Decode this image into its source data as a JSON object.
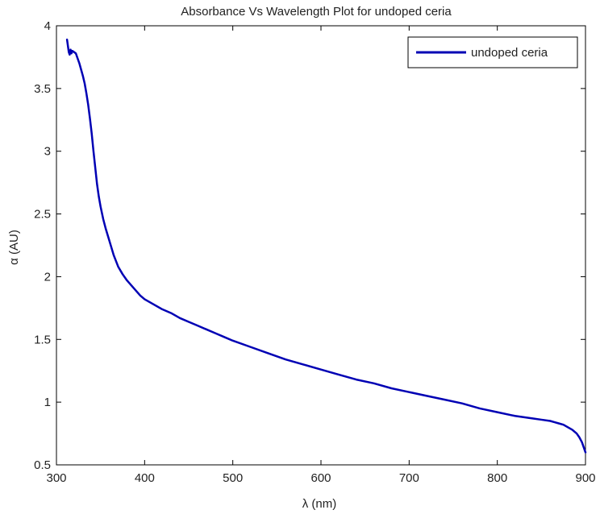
{
  "chart_data": {
    "type": "line",
    "title": "Absorbance Vs Wavelength Plot for undoped ceria",
    "xlabel": "λ (nm)",
    "ylabel": "α (AU)",
    "xlim": [
      300,
      900
    ],
    "ylim": [
      0.5,
      4
    ],
    "xticks": [
      300,
      400,
      500,
      600,
      700,
      800,
      900
    ],
    "yticks": [
      0.5,
      1,
      1.5,
      2,
      2.5,
      3,
      3.5,
      4
    ],
    "xtick_labels": [
      "300",
      "400",
      "500",
      "600",
      "700",
      "800",
      "900"
    ],
    "ytick_labels": [
      "0.5",
      "1",
      "1.5",
      "2",
      "2.5",
      "3",
      "3.5",
      "4"
    ],
    "grid": false,
    "legend_position": "top-right",
    "series": [
      {
        "name": "undoped ceria",
        "color": "#0000b4",
        "x": [
          312,
          313,
          314,
          315,
          316,
          317,
          318,
          320,
          322,
          324,
          326,
          328,
          330,
          332,
          334,
          336,
          338,
          340,
          342,
          344,
          346,
          348,
          350,
          353,
          356,
          359,
          362,
          365,
          370,
          375,
          380,
          385,
          390,
          395,
          400,
          405,
          410,
          420,
          430,
          440,
          450,
          460,
          470,
          480,
          490,
          500,
          520,
          540,
          560,
          580,
          600,
          620,
          640,
          660,
          680,
          700,
          720,
          740,
          760,
          780,
          800,
          820,
          840,
          850,
          860,
          865,
          870,
          875,
          880,
          885,
          890,
          893,
          896,
          898,
          900
        ],
        "y": [
          3.89,
          3.84,
          3.79,
          3.77,
          3.81,
          3.78,
          3.8,
          3.79,
          3.78,
          3.74,
          3.7,
          3.65,
          3.6,
          3.54,
          3.46,
          3.37,
          3.26,
          3.14,
          3.0,
          2.87,
          2.74,
          2.64,
          2.56,
          2.46,
          2.38,
          2.31,
          2.24,
          2.17,
          2.08,
          2.02,
          1.97,
          1.93,
          1.89,
          1.85,
          1.82,
          1.8,
          1.78,
          1.74,
          1.71,
          1.67,
          1.64,
          1.61,
          1.58,
          1.55,
          1.52,
          1.49,
          1.44,
          1.39,
          1.34,
          1.3,
          1.26,
          1.22,
          1.18,
          1.15,
          1.11,
          1.08,
          1.05,
          1.02,
          0.99,
          0.95,
          0.92,
          0.89,
          0.87,
          0.86,
          0.85,
          0.84,
          0.83,
          0.82,
          0.8,
          0.78,
          0.75,
          0.72,
          0.68,
          0.64,
          0.6
        ]
      }
    ]
  }
}
